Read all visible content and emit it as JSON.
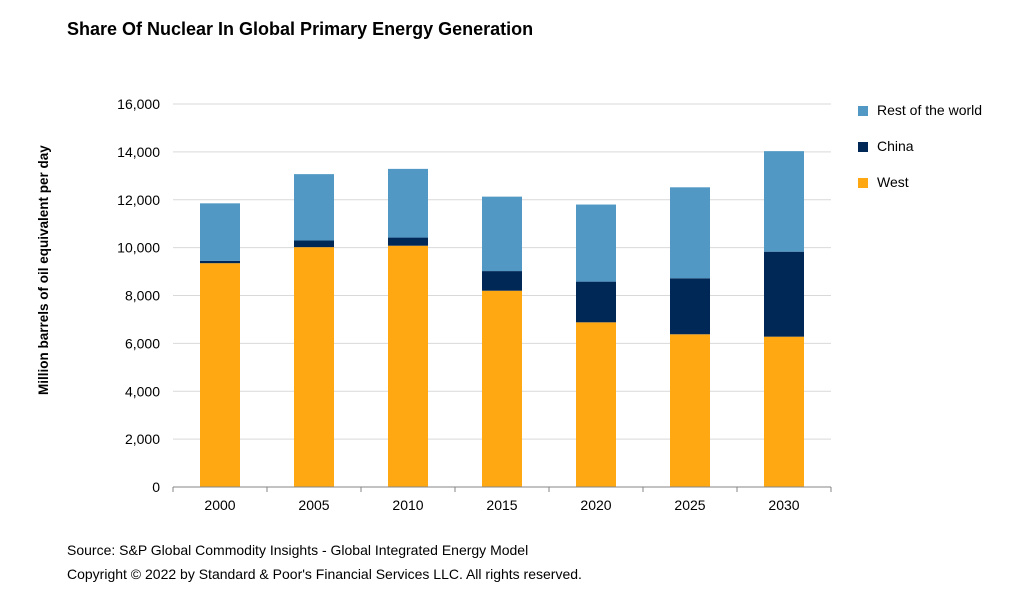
{
  "chart_data": {
    "type": "bar",
    "stacked": true,
    "title": "Share Of Nuclear In Global Primary Energy Generation",
    "ylabel": "Million barrels of oil equivalent per day",
    "xlabel": "",
    "categories": [
      "2000",
      "2005",
      "2010",
      "2015",
      "2020",
      "2025",
      "2030"
    ],
    "ylim": [
      0,
      16000
    ],
    "yticks": [
      0,
      2000,
      4000,
      6000,
      8000,
      10000,
      12000,
      14000,
      16000
    ],
    "ytick_labels": [
      "0",
      "2,000",
      "4,000",
      "6,000",
      "8,000",
      "10,000",
      "12,000",
      "14,000",
      "16,000"
    ],
    "grid": true,
    "legend_position": "right",
    "series": [
      {
        "name": "West",
        "color": "#FFA812",
        "values": [
          9350,
          10020,
          10080,
          8200,
          6880,
          6380,
          6280
        ]
      },
      {
        "name": "China",
        "color": "#002856",
        "values": [
          100,
          280,
          340,
          820,
          1700,
          2340,
          3550
        ]
      },
      {
        "name": "Rest of the world",
        "color": "#5198C5",
        "values": [
          2400,
          2770,
          2870,
          3110,
          3220,
          3800,
          4200
        ]
      }
    ]
  },
  "footer": {
    "source": "Source: S&P Global Commodity Insights - Global Integrated Energy Model",
    "copyright": "Copyright © 2022 by Standard & Poor's Financial Services LLC. All rights reserved."
  }
}
